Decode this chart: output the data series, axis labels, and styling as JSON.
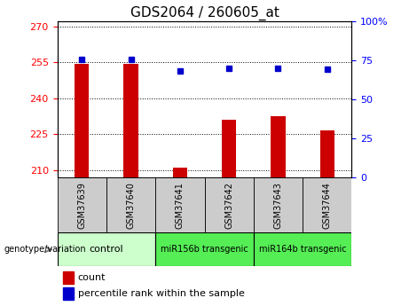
{
  "title": "GDS2064 / 260605_at",
  "samples": [
    "GSM37639",
    "GSM37640",
    "GSM37641",
    "GSM37642",
    "GSM37643",
    "GSM37644"
  ],
  "count_values": [
    254.5,
    254.2,
    211.2,
    231.0,
    232.5,
    226.5
  ],
  "percentile_values": [
    75.5,
    75.5,
    68.5,
    70.0,
    70.0,
    69.5
  ],
  "ylim_left": [
    207,
    272
  ],
  "ylim_right": [
    0,
    100
  ],
  "yticks_left": [
    210,
    225,
    240,
    255,
    270
  ],
  "yticks_right": [
    0,
    25,
    50,
    75,
    100
  ],
  "bar_color": "#cc0000",
  "dot_color": "#0000cc",
  "control_color": "#ccffcc",
  "transgenic_color": "#55ee55",
  "sample_row_color": "#cccccc",
  "legend_count_label": "count",
  "legend_percentile_label": "percentile rank within the sample",
  "genotype_label": "genotype/variation",
  "title_fontsize": 11,
  "tick_fontsize": 8,
  "sample_fontsize": 7,
  "group_fontsize": 8
}
